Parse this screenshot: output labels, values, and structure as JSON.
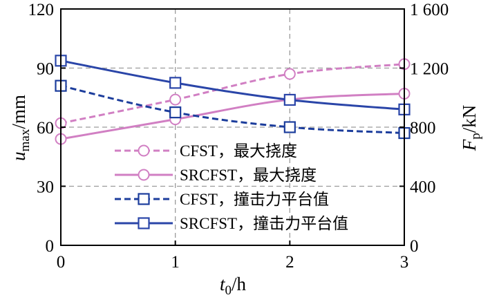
{
  "chart_data": {
    "type": "line",
    "x": [
      0,
      1,
      2,
      3
    ],
    "xlim": [
      0,
      3
    ],
    "x_ticks": [
      "0",
      "1",
      "2",
      "3"
    ],
    "xlabel": {
      "main": "t",
      "sub": "0",
      "rest": "/h"
    },
    "left_axis": {
      "label": {
        "main": "u",
        "sub": "max",
        "rest": "/mm"
      },
      "lim": [
        0,
        120
      ],
      "ticks": [
        "0",
        "30",
        "60",
        "90",
        "120"
      ]
    },
    "right_axis": {
      "label": {
        "main": "F",
        "sub": "p",
        "rest": "/kN"
      },
      "lim": [
        0,
        1600
      ],
      "ticks": [
        "0",
        "400",
        "800",
        "1 200",
        "1 600"
      ]
    },
    "grid": true,
    "legend_position": "center-bottom",
    "series": [
      {
        "name": "CFST，最大挠度",
        "axis": "left",
        "color": "#d17fc3",
        "line_style": "dashed",
        "marker": "circle",
        "values": [
          62,
          74,
          87,
          92
        ]
      },
      {
        "name": "SRCFST，最大挠度",
        "axis": "left",
        "color": "#d17fc3",
        "line_style": "solid",
        "marker": "circle",
        "values": [
          54,
          64,
          74,
          77
        ]
      },
      {
        "name": "CFST，撞击力平台值",
        "axis": "right",
        "color": "#1c3d9c",
        "line_style": "dashed",
        "marker": "square",
        "values": [
          1080,
          900,
          800,
          760
        ]
      },
      {
        "name": "SRCFST，撞击力平台值",
        "axis": "right",
        "color": "#2a45a8",
        "line_style": "solid",
        "marker": "square",
        "values": [
          1250,
          1100,
          985,
          920
        ]
      }
    ]
  }
}
